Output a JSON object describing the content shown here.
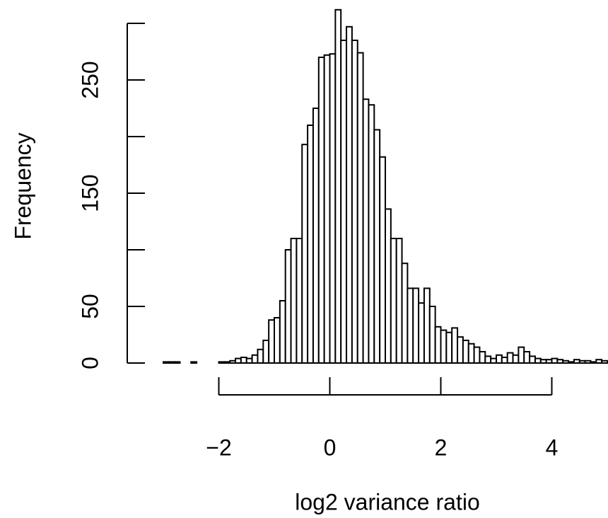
{
  "chart_data": {
    "type": "histogram",
    "x_label": "log2 variance ratio",
    "y_label": "Frequency",
    "bins": [
      -3.0,
      -2.9,
      -2.8,
      -2.7,
      -2.6,
      -2.5,
      -2.4,
      -2.3,
      -2.2,
      -2.1,
      -2.0,
      -1.9,
      -1.8,
      -1.7,
      -1.6,
      -1.5,
      -1.4,
      -1.3,
      -1.2,
      -1.1,
      -1.0,
      -0.9,
      -0.8,
      -0.7,
      -0.6,
      -0.5,
      -0.4,
      -0.3,
      -0.2,
      -0.1,
      0.0,
      0.1,
      0.2,
      0.3,
      0.4,
      0.5,
      0.6,
      0.7,
      0.8,
      0.9,
      1.0,
      1.1,
      1.2,
      1.3,
      1.4,
      1.5,
      1.6,
      1.7,
      1.8,
      1.9,
      2.0,
      2.1,
      2.2,
      2.3,
      2.4,
      2.5,
      2.6,
      2.7,
      2.8,
      2.9,
      3.0,
      3.1,
      3.2,
      3.3,
      3.4,
      3.5,
      3.6,
      3.7,
      3.8,
      3.9,
      4.0,
      4.1,
      4.2,
      4.3,
      4.4,
      4.5,
      4.6,
      4.7,
      4.8,
      4.9,
      5.0
    ],
    "counts": [
      1,
      1,
      1,
      0,
      0,
      1,
      0,
      0,
      0,
      0,
      1,
      1,
      2,
      4,
      5,
      4,
      7,
      12,
      20,
      38,
      40,
      55,
      100,
      110,
      110,
      193,
      210,
      225,
      270,
      272,
      273,
      312,
      285,
      297,
      285,
      274,
      233,
      228,
      206,
      182,
      136,
      110,
      110,
      88,
      66,
      66,
      53,
      66,
      50,
      32,
      29,
      27,
      31,
      23,
      20,
      17,
      14,
      10,
      6,
      4,
      7,
      5,
      9,
      7,
      14,
      10,
      6,
      4,
      3,
      3,
      4,
      3,
      2,
      1,
      3,
      2,
      2,
      1,
      3,
      2
    ],
    "fill": "#ffffff",
    "edge_color": "#000000",
    "xlim": [
      -3,
      5
    ],
    "xticks": [
      {
        "value": -2,
        "label": "−2"
      },
      0,
      2,
      4
    ],
    "ylim": [
      0,
      312
    ],
    "yticks": [
      0,
      50,
      100,
      150,
      200,
      250,
      300
    ]
  }
}
